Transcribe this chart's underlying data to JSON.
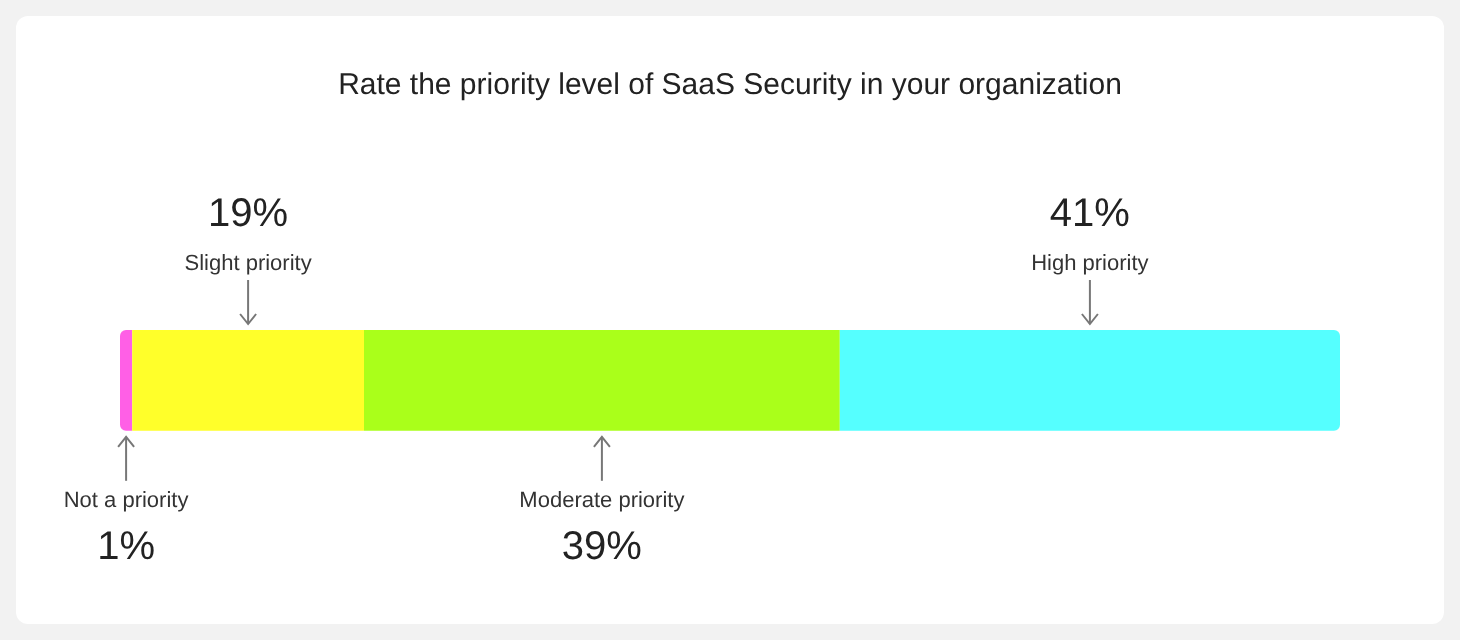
{
  "chart_data": {
    "type": "bar",
    "orientation": "horizontal",
    "stacked": true,
    "title": "Rate the priority level of SaaS Security in your organization",
    "categories": [
      null
    ],
    "xlim": [
      0,
      100
    ],
    "tick_labels": false,
    "grid": false,
    "legend": false,
    "series": [
      {
        "name": "Not a priority",
        "color": "#ff5fe6",
        "values": [
          1
        ],
        "value_labels": [
          "1%"
        ]
      },
      {
        "name": "Slight priority",
        "color": "#ffff2a",
        "values": [
          19
        ],
        "value_labels": [
          "19%"
        ]
      },
      {
        "name": "Moderate priority",
        "color": "#aaff1a",
        "values": [
          39
        ],
        "value_labels": [
          "39%"
        ]
      },
      {
        "name": "High priority",
        "color": "#55ffff",
        "values": [
          41
        ],
        "value_labels": [
          "41%"
        ]
      }
    ]
  }
}
